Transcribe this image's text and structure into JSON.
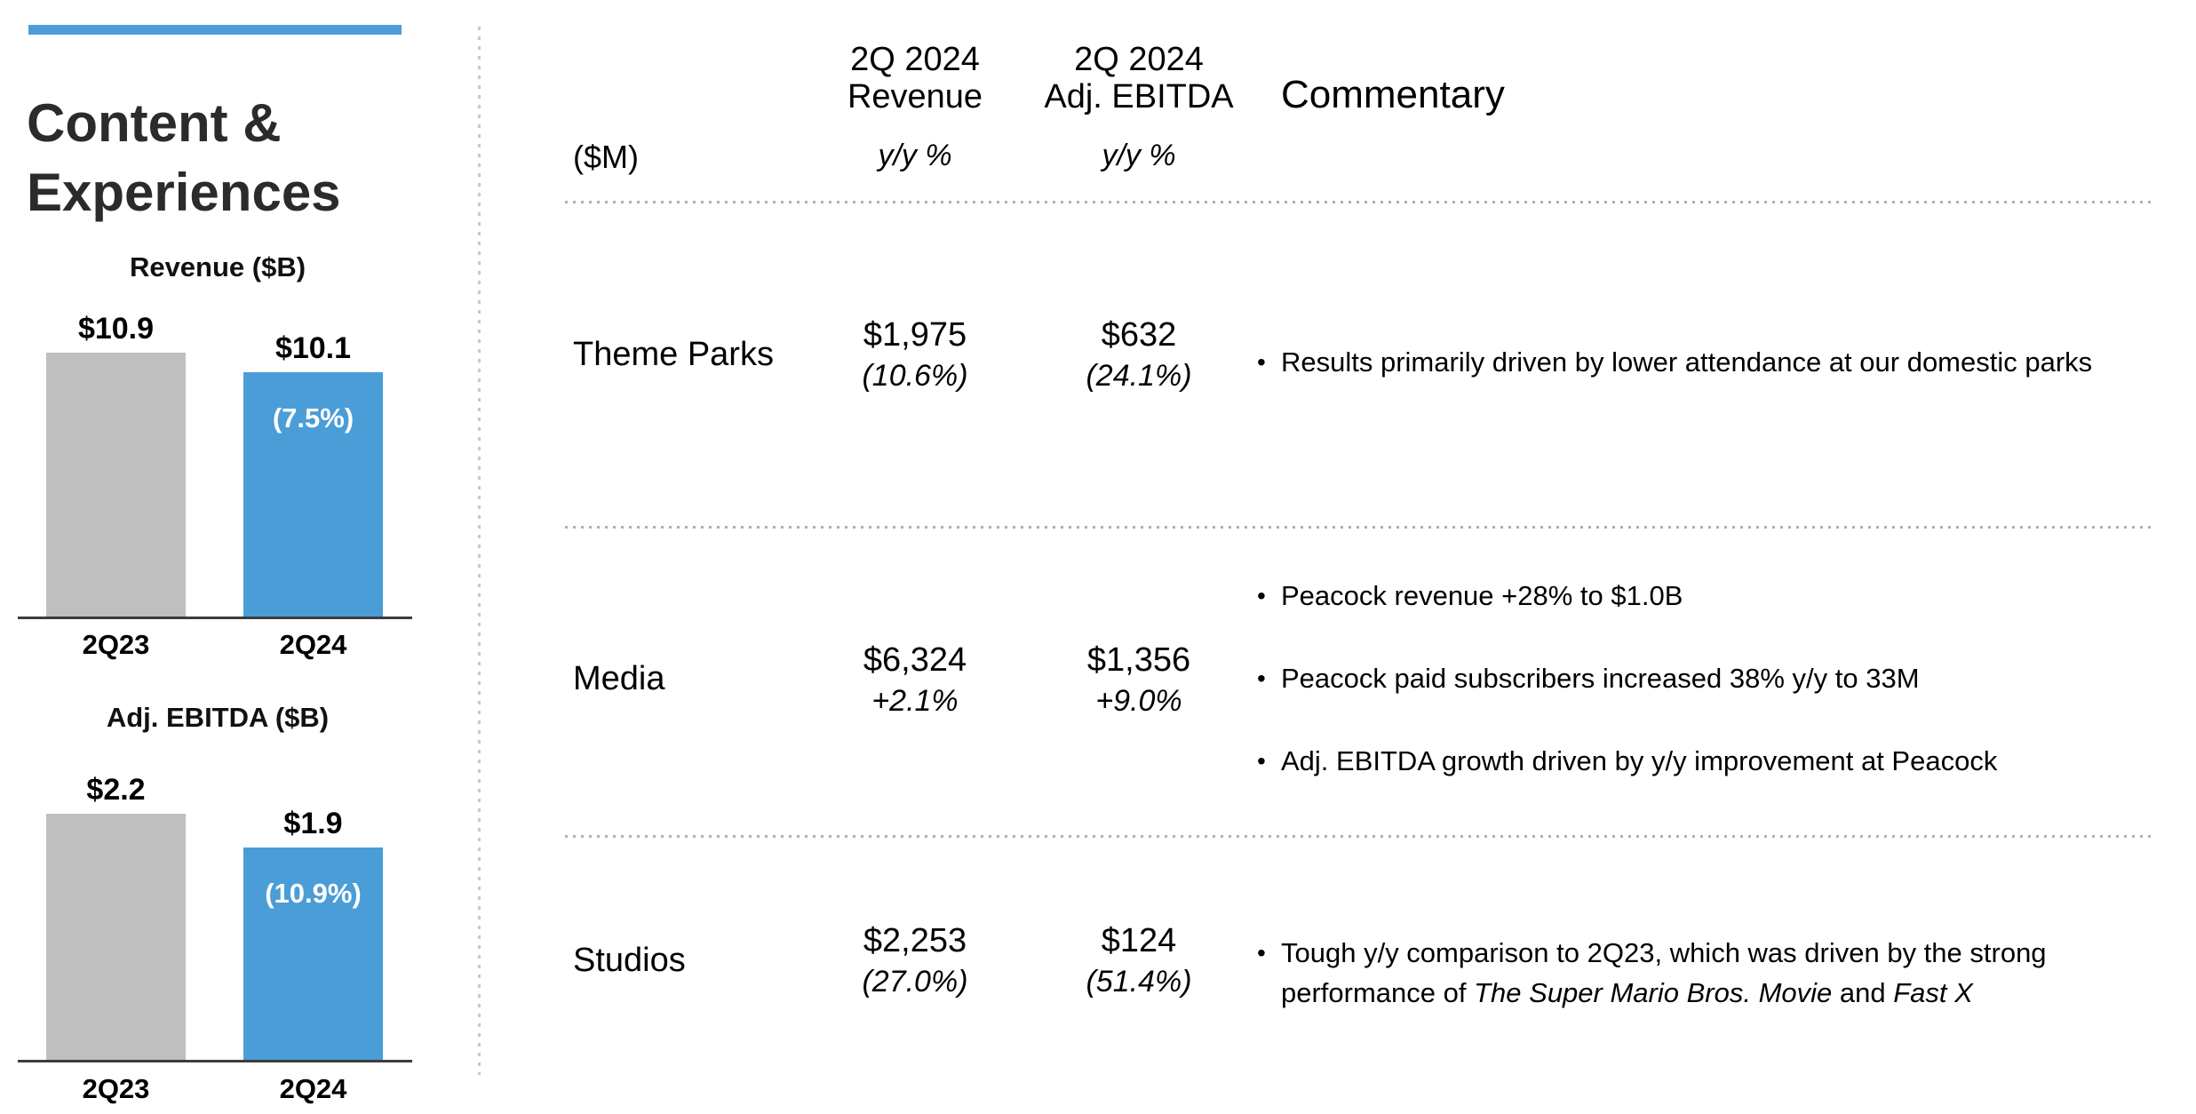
{
  "slide": {
    "title_line1": "Content &",
    "title_line2": "Experiences"
  },
  "colors": {
    "accent_blue": "#4A9DD6",
    "bar_gray": "#BFBFBF",
    "axis": "#3d3d3d"
  },
  "chart_data": [
    {
      "type": "bar",
      "title": "Revenue ($B)",
      "categories": [
        "2Q23",
        "2Q24"
      ],
      "values": [
        10.9,
        10.1
      ],
      "value_labels": [
        "$10.9",
        "$10.1"
      ],
      "change_label": "(7.5%)",
      "bar_colors": [
        "#BFBFBF",
        "#4A9DD6"
      ],
      "ylim": [
        0,
        10.9
      ],
      "grid": false,
      "legend": false
    },
    {
      "type": "bar",
      "title": "Adj. EBITDA ($B)",
      "categories": [
        "2Q23",
        "2Q24"
      ],
      "values": [
        2.2,
        1.9
      ],
      "value_labels": [
        "$2.2",
        "$1.9"
      ],
      "change_label": "(10.9%)",
      "bar_colors": [
        "#BFBFBF",
        "#4A9DD6"
      ],
      "ylim": [
        0,
        2.2
      ],
      "grid": false,
      "legend": false
    }
  ],
  "table": {
    "unit_label": "($M)",
    "columns": {
      "revenue": {
        "header_line1": "2Q 2024",
        "header_line2": "Revenue",
        "subheader": "y/y %"
      },
      "ebitda": {
        "header_line1": "2Q 2024",
        "header_line2": "Adj. EBITDA",
        "subheader": "y/y %"
      },
      "commentary": {
        "header": "Commentary"
      }
    },
    "rows": [
      {
        "segment": "Theme Parks",
        "revenue": "$1,975",
        "revenue_yoy": "(10.6%)",
        "ebitda": "$632",
        "ebitda_yoy": "(24.1%)",
        "bullets": [
          {
            "text": "Results primarily driven by lower attendance at our domestic parks"
          }
        ]
      },
      {
        "segment": "Media",
        "revenue": "$6,324",
        "revenue_yoy": "+2.1%",
        "ebitda": "$1,356",
        "ebitda_yoy": "+9.0%",
        "bullets": [
          {
            "text": "Peacock revenue +28% to $1.0B"
          },
          {
            "text": "Peacock paid subscribers increased 38% y/y to 33M"
          },
          {
            "text": "Adj. EBITDA growth driven by y/y improvement at Peacock"
          }
        ]
      },
      {
        "segment": "Studios",
        "revenue": "$2,253",
        "revenue_yoy": "(27.0%)",
        "ebitda": "$124",
        "ebitda_yoy": "(51.4%)",
        "bullets": [
          {
            "pre": "Tough y/y comparison to 2Q23, which was driven by the strong performance of ",
            "italic1": "The Super Mario Bros. Movie",
            "mid": " and ",
            "italic2": "Fast X"
          }
        ]
      }
    ]
  },
  "bullet_glyph": "•"
}
